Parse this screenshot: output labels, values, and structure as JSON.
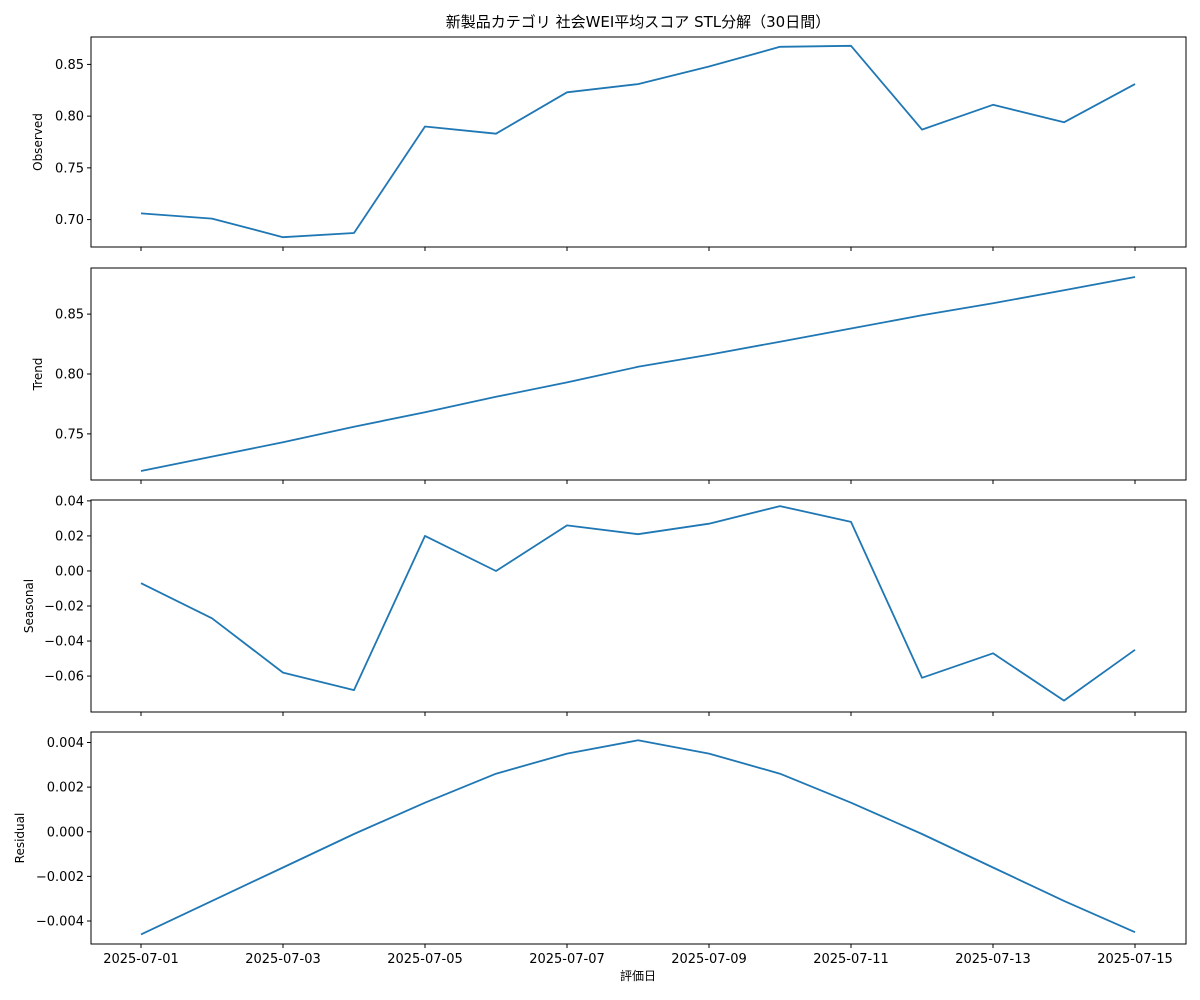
{
  "chart_data": {
    "type": "line",
    "title": "新製品カテゴリ 社会WEI平均スコア STL分解（30日間）",
    "xlabel": "評価日",
    "line_color": "#1f77b4",
    "grid": false,
    "x": [
      "2025-07-01",
      "2025-07-02",
      "2025-07-03",
      "2025-07-04",
      "2025-07-05",
      "2025-07-06",
      "2025-07-07",
      "2025-07-08",
      "2025-07-09",
      "2025-07-10",
      "2025-07-11",
      "2025-07-12",
      "2025-07-13",
      "2025-07-14",
      "2025-07-15"
    ],
    "x_tick_labels": [
      "2025-07-01",
      "2025-07-03",
      "2025-07-05",
      "2025-07-07",
      "2025-07-09",
      "2025-07-11",
      "2025-07-13",
      "2025-07-15"
    ],
    "panels": [
      {
        "name": "observed",
        "ylabel": "Observed",
        "ylim": [
          0.6735,
          0.8765
        ],
        "yticks": [
          0.7,
          0.75,
          0.8,
          0.85
        ],
        "ytick_labels": [
          "0.70",
          "0.75",
          "0.80",
          "0.85"
        ],
        "values": [
          0.706,
          0.701,
          0.683,
          0.687,
          0.79,
          0.783,
          0.823,
          0.831,
          0.848,
          0.867,
          0.868,
          0.787,
          0.811,
          0.794,
          0.831
        ]
      },
      {
        "name": "trend",
        "ylabel": "Trend",
        "ylim": [
          0.7115,
          0.8885
        ],
        "yticks": [
          0.75,
          0.8,
          0.85
        ],
        "ytick_labels": [
          "0.75",
          "0.80",
          "0.85"
        ],
        "values": [
          0.719,
          0.731,
          0.743,
          0.756,
          0.768,
          0.781,
          0.793,
          0.806,
          0.816,
          0.827,
          0.838,
          0.849,
          0.859,
          0.87,
          0.881
        ]
      },
      {
        "name": "seasonal",
        "ylabel": "Seasonal",
        "ylim": [
          -0.0805,
          0.0405
        ],
        "yticks": [
          -0.06,
          -0.04,
          -0.02,
          0.0,
          0.02,
          0.04
        ],
        "ytick_labels": [
          "−0.06",
          "−0.04",
          "−0.02",
          "0.00",
          "0.02",
          "0.04"
        ],
        "values": [
          -0.007,
          -0.027,
          -0.058,
          -0.068,
          0.02,
          0.0,
          0.026,
          0.021,
          0.027,
          0.037,
          0.028,
          -0.061,
          -0.047,
          -0.074,
          -0.045
        ]
      },
      {
        "name": "residual",
        "ylabel": "Residual",
        "ylim": [
          -0.00503,
          0.00447
        ],
        "yticks": [
          -0.004,
          -0.002,
          0.0,
          0.002,
          0.004
        ],
        "ytick_labels": [
          "−0.004",
          "−0.002",
          "0.000",
          "0.002",
          "0.004"
        ],
        "values": [
          -0.0046,
          -0.0031,
          -0.0016,
          -0.0001,
          0.0013,
          0.0026,
          0.0035,
          0.0041,
          0.0035,
          0.0026,
          0.0013,
          -0.0001,
          -0.0016,
          -0.0031,
          -0.0045
        ]
      }
    ]
  }
}
